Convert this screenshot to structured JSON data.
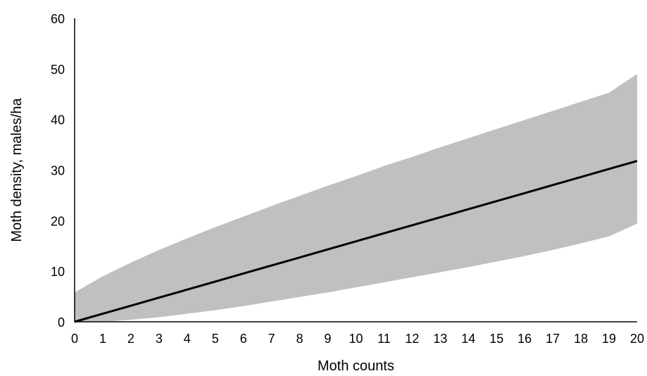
{
  "chart_data": {
    "type": "line",
    "xlabel": "Moth counts",
    "ylabel": "Moth density, males/ha",
    "xlim": [
      0,
      20
    ],
    "ylim": [
      0,
      60
    ],
    "x_ticks": [
      0,
      1,
      2,
      3,
      4,
      5,
      6,
      7,
      8,
      9,
      10,
      11,
      12,
      13,
      14,
      15,
      16,
      17,
      18,
      19,
      20
    ],
    "y_ticks": [
      0,
      10,
      20,
      30,
      40,
      50,
      60
    ],
    "grid": false,
    "legend": "none",
    "x": [
      0,
      1,
      2,
      3,
      4,
      5,
      6,
      7,
      8,
      9,
      10,
      11,
      12,
      13,
      14,
      15,
      16,
      17,
      18,
      19,
      20
    ],
    "series": [
      {
        "role": "line",
        "color": "#000000",
        "values": [
          0,
          1.59,
          3.18,
          4.77,
          6.36,
          7.95,
          9.54,
          11.13,
          12.72,
          14.31,
          15.9,
          17.49,
          19.08,
          20.67,
          22.26,
          23.85,
          25.44,
          27.03,
          28.62,
          30.21,
          31.8
        ]
      },
      {
        "role": "band-upper",
        "color": "#c0c0c0",
        "values": [
          5.8,
          9.0,
          11.7,
          14.2,
          16.5,
          18.7,
          20.8,
          22.9,
          24.9,
          26.9,
          28.8,
          30.8,
          32.6,
          34.5,
          36.3,
          38.1,
          39.9,
          41.7,
          43.5,
          45.3,
          49.0
        ]
      },
      {
        "role": "band-lower",
        "color": "#c0c0c0",
        "values": [
          0,
          0.02,
          0.4,
          0.9,
          1.6,
          2.3,
          3.1,
          4.0,
          4.9,
          5.8,
          6.8,
          7.8,
          8.8,
          9.8,
          10.8,
          11.9,
          13.0,
          14.2,
          15.5,
          16.9,
          19.4
        ]
      }
    ]
  }
}
